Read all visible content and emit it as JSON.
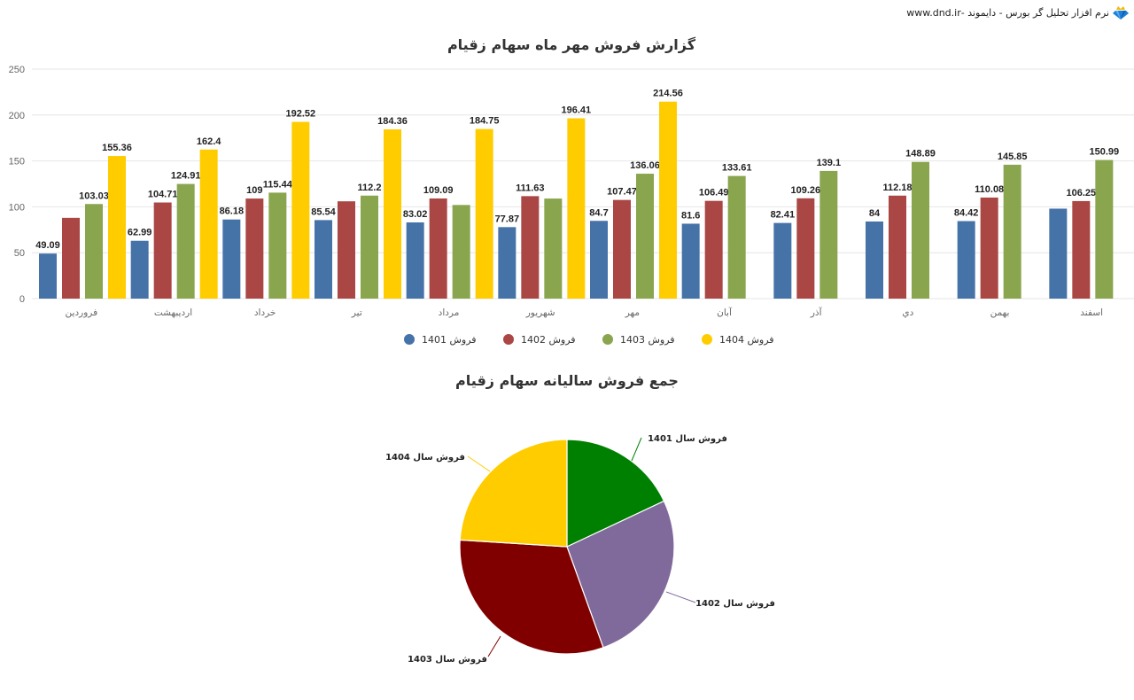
{
  "header": {
    "brand_text": "نرم افزار تحلیل گر بورس - دایموند -www.dnd.ir",
    "logo_icon": "diamond-crown-icon"
  },
  "colors": {
    "s1401": "#4572A7",
    "s1402": "#AA4643",
    "s1403": "#89A54E",
    "s1404": "#FFCC00",
    "pie1401": "#008000",
    "pie1402": "#80699B",
    "pie1403": "#800000",
    "pie1404": "#FFCC00",
    "grid": "#e6e6e6"
  },
  "chart_data": [
    {
      "type": "bar",
      "title": "گزارش فروش مهر ماه سهام زقیام",
      "xlabel": "",
      "ylabel": "",
      "ylim": [
        0,
        250
      ],
      "yticks": [
        0,
        50,
        100,
        150,
        200,
        250
      ],
      "grid": true,
      "legend_position": "bottom",
      "categories": [
        "فروردین",
        "اردیبهشت",
        "خرداد",
        "تیر",
        "مرداد",
        "شهریور",
        "مهر",
        "آبان",
        "آذر",
        "دي",
        "بهمن",
        "اسفند"
      ],
      "series": [
        {
          "name": "فروش 1401",
          "values": [
            49.09,
            62.99,
            86.18,
            85.54,
            83.02,
            77.87,
            84.7,
            81.6,
            82.41,
            84,
            84.42,
            98
          ],
          "labels": [
            "49.09",
            "62.99",
            "86.18",
            "85.54",
            "83.02",
            "77.87",
            "84.7",
            "81.6",
            "82.41",
            "84",
            "84.42",
            ""
          ]
        },
        {
          "name": "فروش 1402",
          "values": [
            88,
            104.71,
            109,
            106,
            109.09,
            111.63,
            107.47,
            106.49,
            109.26,
            112.18,
            110.08,
            106.25
          ],
          "labels": [
            "",
            "104.71",
            "109",
            "",
            "109.09",
            "111.63",
            "107.47",
            "106.49",
            "109.26",
            "112.18",
            "110.08",
            "106.25"
          ]
        },
        {
          "name": "فروش 1403",
          "values": [
            103.03,
            124.91,
            115.44,
            112.2,
            102,
            109,
            136.06,
            133.61,
            139.1,
            148.89,
            145.85,
            150.99
          ],
          "labels": [
            "103.03",
            "124.91",
            "115.44",
            "112.2",
            "",
            "",
            "136.06",
            "133.61",
            "139.1",
            "148.89",
            "145.85",
            "150.99"
          ]
        },
        {
          "name": "فروش 1404",
          "values": [
            155.36,
            162.4,
            192.52,
            184.36,
            184.75,
            196.41,
            214.56,
            null,
            null,
            null,
            null,
            null
          ],
          "labels": [
            "155.36",
            "162.4",
            "192.52",
            "184.36",
            "184.75",
            "196.41",
            "214.56",
            "",
            "",
            "",
            "",
            ""
          ]
        }
      ]
    },
    {
      "type": "pie",
      "title": "جمع فروش سالیانه سهام زقیام",
      "legend_position": "none",
      "categories": [
        "فروش سال 1401",
        "فروش سال 1402",
        "فروش سال 1403",
        "فروش سال 1404"
      ],
      "values": [
        18,
        26.5,
        31.5,
        24
      ],
      "colors": [
        "#008000",
        "#80699B",
        "#800000",
        "#FFCC00"
      ]
    }
  ]
}
